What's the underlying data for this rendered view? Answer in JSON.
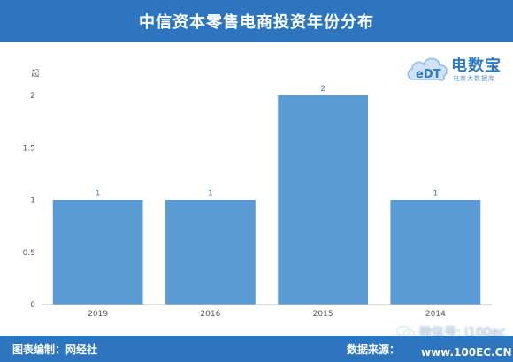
{
  "header": {
    "title": "中信资本零售电商投资年份分布"
  },
  "logo": {
    "brand": "电数宝",
    "slogan": "电商大数据库",
    "mark": "eDT"
  },
  "footer": {
    "editor": "图表编制：网经社",
    "source": "数据来源："
  },
  "watermark": {
    "text": "微信号: i100ec",
    "site": "www.100EC.CN"
  },
  "colors": {
    "header": "#2d76bf",
    "bar": "#5b9bd5",
    "axis": "#bfbfbf",
    "label": "#595959",
    "data_label": "#4a7eb5"
  },
  "chart_data": {
    "type": "bar",
    "categories": [
      "2019",
      "2016",
      "2015",
      "2014"
    ],
    "values": [
      1,
      1,
      2,
      1
    ],
    "data_labels": [
      "1",
      "1",
      "2",
      "1"
    ],
    "title": "",
    "xlabel": "",
    "ylabel": "起",
    "ylim": [
      0,
      2
    ],
    "yticks": [
      "0",
      "0.5",
      "1",
      "1.5",
      "2"
    ],
    "grid": false,
    "legend": "none"
  }
}
